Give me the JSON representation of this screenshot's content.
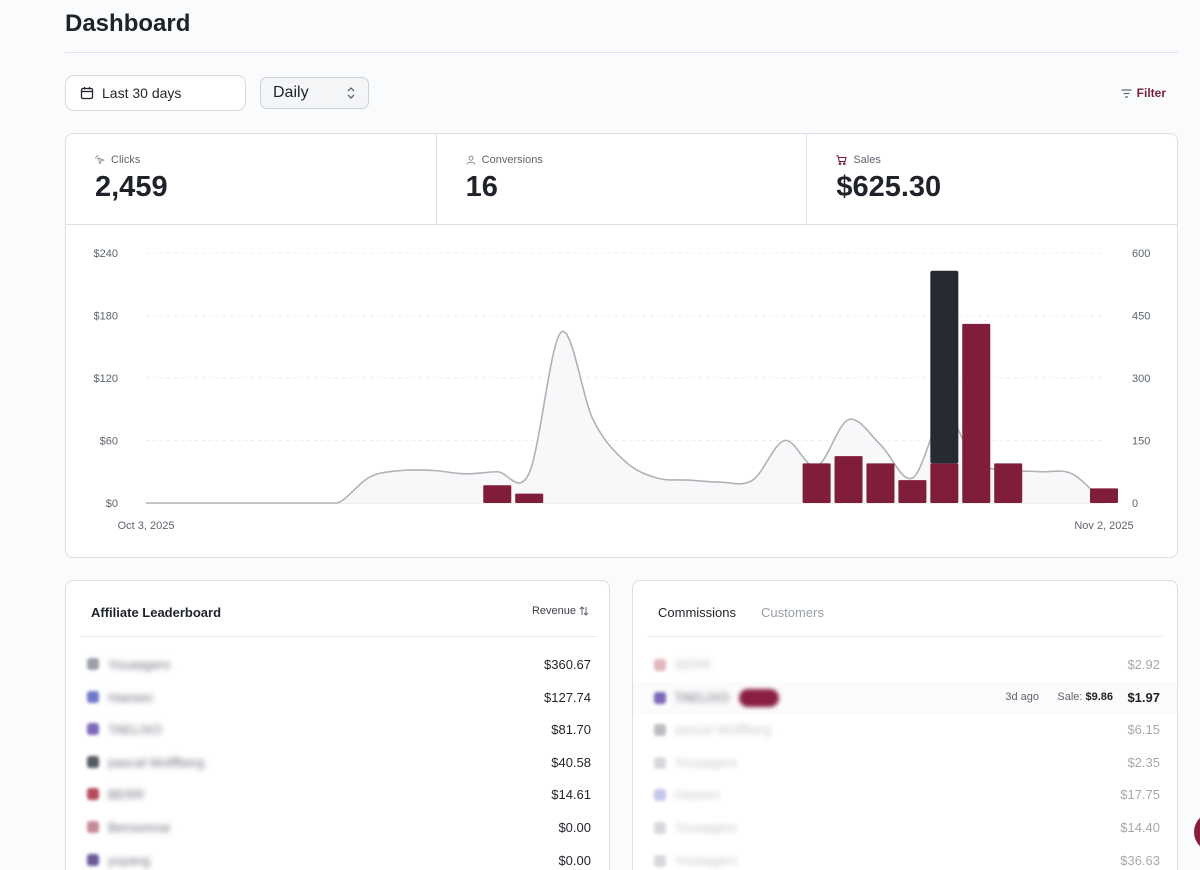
{
  "header": {
    "title": "Dashboard"
  },
  "toolbar": {
    "date_range": "Last 30 days",
    "interval": "Daily",
    "filter_label": "Filter"
  },
  "stats": [
    {
      "label": "Clicks",
      "value": "2,459",
      "icon": "cursor-click-icon"
    },
    {
      "label": "Conversions",
      "value": "16",
      "icon": "user-icon"
    },
    {
      "label": "Sales",
      "value": "$625.30",
      "icon": "cart-icon"
    }
  ],
  "chart_data": {
    "type": "bar",
    "title": "",
    "x_start_label": "Oct 3, 2025",
    "x_end_label": "Nov 2, 2025",
    "left_axis": {
      "ticks": [
        "$0",
        "$60",
        "$120",
        "$180",
        "$240"
      ],
      "range": [
        0,
        240
      ]
    },
    "right_axis": {
      "ticks": [
        "0",
        "150",
        "300",
        "450",
        "600"
      ],
      "range": [
        0,
        600
      ]
    },
    "days": 31,
    "series": [
      {
        "name": "Sales",
        "axis": "left",
        "color": "#7f1d3b",
        "values": [
          0,
          0,
          0,
          0,
          0,
          0,
          0,
          0,
          0,
          0,
          0,
          17,
          9,
          0,
          0,
          0,
          0,
          0,
          0,
          0,
          0,
          38,
          45,
          38,
          22,
          38,
          172,
          38,
          0,
          0,
          14
        ]
      },
      {
        "name": "Stacked",
        "axis": "left",
        "color": "#262a33",
        "values": [
          0,
          0,
          0,
          0,
          0,
          0,
          0,
          0,
          0,
          0,
          0,
          0,
          0,
          0,
          0,
          0,
          0,
          0,
          0,
          0,
          0,
          0,
          0,
          0,
          0,
          185,
          0,
          0,
          0,
          0,
          0
        ]
      },
      {
        "name": "Clicks",
        "axis": "right",
        "color": "#b0b2b6",
        "values": [
          0,
          0,
          0,
          0,
          0,
          0,
          0,
          62,
          78,
          78,
          70,
          75,
          72,
          410,
          200,
          100,
          60,
          55,
          50,
          55,
          150,
          88,
          200,
          140,
          60,
          212,
          98,
          80,
          75,
          70,
          0
        ]
      }
    ]
  },
  "leaderboard": {
    "title": "Affiliate Leaderboard",
    "sort_label": "Revenue",
    "rows": [
      {
        "name": "Youaagero",
        "amount": "$360.67",
        "color": "#9aa0a8"
      },
      {
        "name": "Haesen",
        "amount": "$127.74",
        "color": "#6f77c9"
      },
      {
        "name": "TAELIXO",
        "amount": "$81.70",
        "color": "#7c68b8"
      },
      {
        "name": "pascal Wolffberg",
        "amount": "$40.58",
        "color": "#555b63"
      },
      {
        "name": "BERR",
        "amount": "$14.61",
        "color": "#b54a5a"
      },
      {
        "name": "Bensonnar",
        "amount": "$0.00",
        "color": "#c58a99"
      },
      {
        "name": "yuyang",
        "amount": "$0.00",
        "color": "#6a5a9a"
      }
    ]
  },
  "commissions": {
    "tab_active": "Commissions",
    "tab_inactive": "Customers",
    "rows": [
      {
        "name": "BERR",
        "amount": "$2.92",
        "color": "#b54a5a",
        "dim": true
      },
      {
        "name": "TAELIXO",
        "amount": "$1.97",
        "color": "#7c68b8",
        "dim": false,
        "time": "3d ago",
        "sale_label": "Sale:",
        "sale_value": "$9.86"
      },
      {
        "name": "pascal Wolffberg",
        "amount": "$6.15",
        "color": "#555b63",
        "dim": true
      },
      {
        "name": "Youaagero",
        "amount": "$2.35",
        "color": "#9aa0a8",
        "dim": true
      },
      {
        "name": "Haesen",
        "amount": "$17.75",
        "color": "#6f77c9",
        "dim": true
      },
      {
        "name": "Youaagero",
        "amount": "$14.40",
        "color": "#9aa0a8",
        "dim": true
      },
      {
        "name": "Youaagero",
        "amount": "$36.63",
        "color": "#9aa0a8",
        "dim": true
      }
    ]
  }
}
